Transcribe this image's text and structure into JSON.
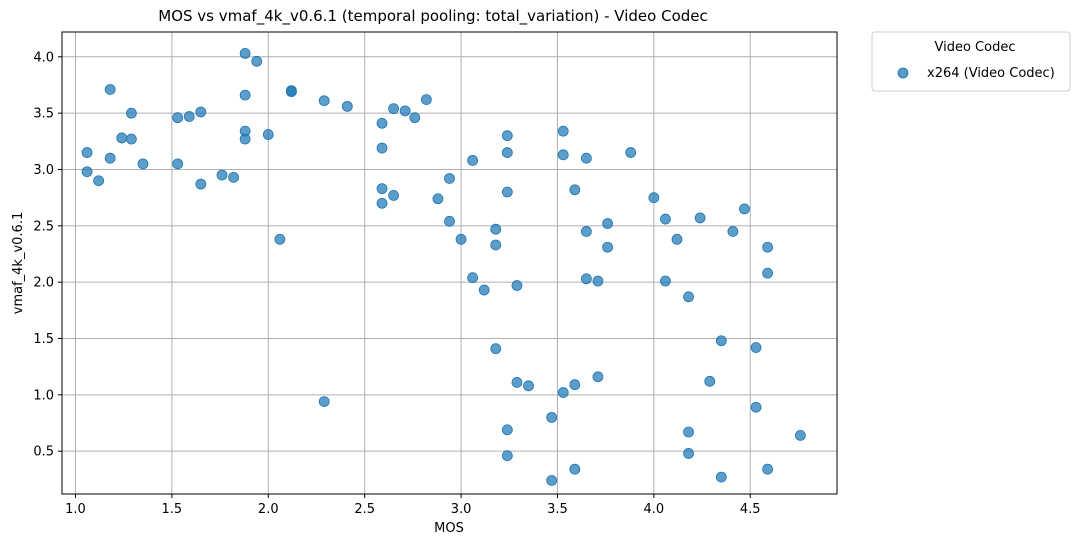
{
  "chart_data": {
    "type": "scatter",
    "title": "MOS vs vmaf_4k_v0.6.1 (temporal pooling: total_variation) - Video Codec",
    "xlabel": "MOS",
    "ylabel": "vmaf_4k_v0.6.1",
    "xlim": [
      0.93,
      4.95
    ],
    "ylim": [
      0.12,
      4.22
    ],
    "xticks": [
      "1.0",
      "1.5",
      "2.0",
      "2.5",
      "3.0",
      "3.5",
      "4.0",
      "4.5"
    ],
    "yticks": [
      "0.5",
      "1.0",
      "1.5",
      "2.0",
      "2.5",
      "3.0",
      "3.5",
      "4.0"
    ],
    "grid": true,
    "legend": {
      "title": "Video Codec",
      "placement": "outside-top-right"
    },
    "colors": {
      "marker": "#1f77b4",
      "grid": "#b0b0b0"
    },
    "series": [
      {
        "name": "x264 (Video Codec)",
        "points": [
          [
            1.06,
            3.15
          ],
          [
            1.06,
            2.98
          ],
          [
            1.12,
            2.9
          ],
          [
            1.18,
            3.71
          ],
          [
            1.18,
            3.1
          ],
          [
            1.24,
            3.28
          ],
          [
            1.29,
            3.5
          ],
          [
            1.29,
            3.27
          ],
          [
            1.35,
            3.05
          ],
          [
            1.53,
            3.46
          ],
          [
            1.53,
            3.05
          ],
          [
            1.59,
            3.47
          ],
          [
            1.65,
            3.51
          ],
          [
            1.65,
            2.87
          ],
          [
            1.76,
            2.95
          ],
          [
            1.82,
            2.93
          ],
          [
            1.88,
            4.03
          ],
          [
            1.88,
            3.66
          ],
          [
            1.88,
            3.34
          ],
          [
            1.88,
            3.27
          ],
          [
            1.94,
            3.96
          ],
          [
            2.0,
            3.31
          ],
          [
            2.06,
            2.38
          ],
          [
            2.12,
            3.7
          ],
          [
            2.12,
            3.69
          ],
          [
            2.29,
            3.61
          ],
          [
            2.29,
            0.94
          ],
          [
            2.41,
            3.56
          ],
          [
            2.59,
            3.41
          ],
          [
            2.59,
            3.19
          ],
          [
            2.59,
            2.83
          ],
          [
            2.59,
            2.7
          ],
          [
            2.65,
            3.54
          ],
          [
            2.65,
            2.77
          ],
          [
            2.71,
            3.52
          ],
          [
            2.76,
            3.46
          ],
          [
            2.82,
            3.62
          ],
          [
            2.88,
            2.74
          ],
          [
            2.94,
            2.92
          ],
          [
            2.94,
            2.54
          ],
          [
            3.0,
            2.38
          ],
          [
            3.06,
            3.08
          ],
          [
            3.06,
            2.04
          ],
          [
            3.12,
            1.93
          ],
          [
            3.18,
            2.47
          ],
          [
            3.18,
            2.33
          ],
          [
            3.18,
            1.41
          ],
          [
            3.24,
            3.3
          ],
          [
            3.24,
            3.15
          ],
          [
            3.24,
            2.8
          ],
          [
            3.24,
            0.69
          ],
          [
            3.24,
            0.46
          ],
          [
            3.29,
            1.97
          ],
          [
            3.29,
            1.11
          ],
          [
            3.35,
            1.08
          ],
          [
            3.47,
            0.8
          ],
          [
            3.47,
            0.24
          ],
          [
            3.53,
            3.34
          ],
          [
            3.53,
            3.13
          ],
          [
            3.53,
            1.02
          ],
          [
            3.59,
            2.82
          ],
          [
            3.59,
            1.09
          ],
          [
            3.59,
            0.34
          ],
          [
            3.65,
            3.1
          ],
          [
            3.65,
            2.45
          ],
          [
            3.65,
            2.03
          ],
          [
            3.71,
            2.01
          ],
          [
            3.71,
            1.16
          ],
          [
            3.76,
            2.52
          ],
          [
            3.76,
            2.31
          ],
          [
            3.88,
            3.15
          ],
          [
            4.0,
            2.75
          ],
          [
            4.06,
            2.56
          ],
          [
            4.06,
            2.01
          ],
          [
            4.12,
            2.38
          ],
          [
            4.18,
            1.87
          ],
          [
            4.18,
            0.67
          ],
          [
            4.18,
            0.48
          ],
          [
            4.24,
            2.57
          ],
          [
            4.29,
            1.12
          ],
          [
            4.35,
            1.48
          ],
          [
            4.35,
            0.27
          ],
          [
            4.41,
            2.45
          ],
          [
            4.47,
            2.65
          ],
          [
            4.53,
            1.42
          ],
          [
            4.53,
            0.89
          ],
          [
            4.59,
            2.31
          ],
          [
            4.59,
            2.08
          ],
          [
            4.59,
            0.34
          ],
          [
            4.76,
            0.64
          ]
        ]
      }
    ]
  }
}
